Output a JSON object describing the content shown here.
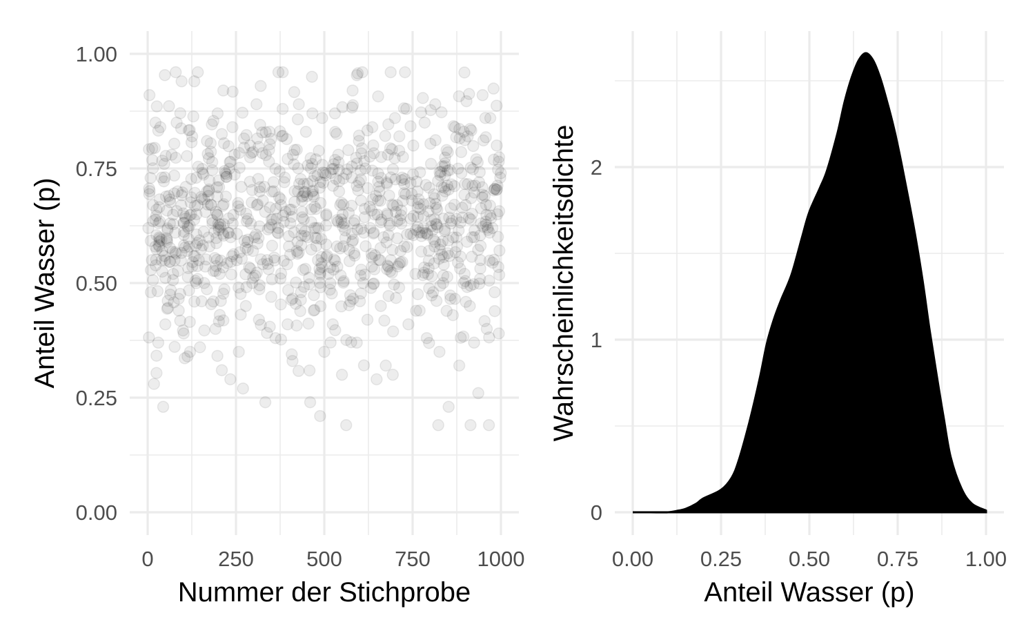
{
  "chart_data": [
    {
      "type": "scatter",
      "xlabel": "Nummer der Stichprobe",
      "ylabel": "Anteil Wasser  (p)",
      "xlim": [
        0,
        1000
      ],
      "ylim": [
        0,
        1
      ],
      "x_ticks": [
        "0",
        "250",
        "500",
        "750",
        "1000"
      ],
      "y_ticks": [
        "0.00",
        "0.25",
        "0.50",
        "0.75",
        "1.00"
      ],
      "grid": true,
      "point_alpha": 0.1,
      "n_points": 1000,
      "summary": {
        "mean": 0.64,
        "sd": 0.13,
        "min": 0.19,
        "max": 0.96
      },
      "points": [
        [
          2,
          0.62
        ],
        [
          5,
          0.91
        ],
        [
          9,
          0.48
        ],
        [
          12,
          0.55
        ],
        [
          18,
          0.28
        ],
        [
          22,
          0.85
        ],
        [
          25,
          0.66
        ],
        [
          30,
          0.37
        ],
        [
          36,
          0.84
        ],
        [
          40,
          0.73
        ],
        [
          44,
          0.23
        ],
        [
          50,
          0.41
        ],
        [
          55,
          0.59
        ],
        [
          60,
          0.69
        ],
        [
          68,
          0.78
        ],
        [
          72,
          0.52
        ],
        [
          78,
          0.61
        ],
        [
          82,
          0.85
        ],
        [
          88,
          0.44
        ],
        [
          96,
          0.94
        ],
        [
          102,
          0.39
        ],
        [
          108,
          0.71
        ],
        [
          112,
          0.57
        ],
        [
          120,
          0.35
        ],
        [
          126,
          0.82
        ],
        [
          132,
          0.94
        ],
        [
          138,
          0.65
        ],
        [
          142,
          0.96
        ],
        [
          148,
          0.36
        ],
        [
          155,
          0.74
        ],
        [
          160,
          0.5
        ],
        [
          168,
          0.81
        ],
        [
          175,
          0.58
        ],
        [
          180,
          0.67
        ],
        [
          186,
          0.46
        ],
        [
          192,
          0.4
        ],
        [
          198,
          0.87
        ],
        [
          204,
          0.52
        ],
        [
          210,
          0.31
        ],
        [
          214,
          0.92
        ],
        [
          220,
          0.74
        ],
        [
          228,
          0.61
        ],
        [
          234,
          0.29
        ],
        [
          240,
          0.84
        ],
        [
          246,
          0.78
        ],
        [
          252,
          0.55
        ],
        [
          258,
          0.35
        ],
        [
          265,
          0.71
        ],
        [
          270,
          0.27
        ],
        [
          278,
          0.45
        ],
        [
          284,
          0.64
        ],
        [
          290,
          0.8
        ],
        [
          296,
          0.5
        ],
        [
          302,
          0.6
        ],
        [
          308,
          0.89
        ],
        [
          315,
          0.42
        ],
        [
          320,
          0.93
        ],
        [
          326,
          0.68
        ],
        [
          333,
          0.24
        ],
        [
          338,
          0.55
        ],
        [
          345,
          0.83
        ],
        [
          350,
          0.47
        ],
        [
          356,
          0.72
        ],
        [
          362,
          0.38
        ],
        [
          370,
          0.62
        ],
        [
          376,
          0.51
        ],
        [
          382,
          0.88
        ],
        [
          388,
          0.73
        ],
        [
          396,
          0.41
        ],
        [
          402,
          0.66
        ],
        [
          410,
          0.33
        ],
        [
          416,
          0.79
        ],
        [
          422,
          0.57
        ],
        [
          428,
          0.89
        ],
        [
          434,
          0.48
        ],
        [
          440,
          0.69
        ],
        [
          448,
          0.83
        ],
        [
          454,
          0.6
        ],
        [
          460,
          0.24
        ],
        [
          465,
          0.95
        ],
        [
          470,
          0.44
        ],
        [
          476,
          0.77
        ],
        [
          482,
          0.55
        ],
        [
          488,
          0.21
        ],
        [
          494,
          0.86
        ],
        [
          500,
          0.35
        ],
        [
          506,
          0.65
        ],
        [
          512,
          0.52
        ],
        [
          518,
          0.74
        ],
        [
          524,
          0.41
        ],
        [
          530,
          0.87
        ],
        [
          536,
          0.58
        ],
        [
          542,
          0.7
        ],
        [
          550,
          0.3
        ],
        [
          556,
          0.63
        ],
        [
          562,
          0.19
        ],
        [
          568,
          0.79
        ],
        [
          574,
          0.46
        ],
        [
          580,
          0.92
        ],
        [
          586,
          0.56
        ],
        [
          592,
          0.37
        ],
        [
          598,
          0.81
        ],
        [
          604,
          0.68
        ],
        [
          610,
          0.5
        ],
        [
          616,
          0.75
        ],
        [
          622,
          0.42
        ],
        [
          630,
          0.62
        ],
        [
          636,
          0.84
        ],
        [
          642,
          0.53
        ],
        [
          648,
          0.29
        ],
        [
          655,
          0.71
        ],
        [
          660,
          0.45
        ],
        [
          668,
          0.6
        ],
        [
          674,
          0.32
        ],
        [
          680,
          0.78
        ],
        [
          688,
          0.55
        ],
        [
          694,
          0.3
        ],
        [
          700,
          0.86
        ],
        [
          706,
          0.67
        ],
        [
          712,
          0.49
        ],
        [
          720,
          0.73
        ],
        [
          726,
          0.58
        ],
        [
          732,
          0.88
        ],
        [
          738,
          0.41
        ],
        [
          745,
          0.64
        ],
        [
          752,
          0.8
        ],
        [
          758,
          0.52
        ],
        [
          764,
          0.7
        ],
        [
          770,
          0.44
        ],
        [
          776,
          0.61
        ],
        [
          784,
          0.85
        ],
        [
          790,
          0.38
        ],
        [
          796,
          0.57
        ],
        [
          802,
          0.76
        ],
        [
          808,
          0.48
        ],
        [
          814,
          0.89
        ],
        [
          820,
          0.66
        ],
        [
          826,
          0.35
        ],
        [
          832,
          0.71
        ],
        [
          838,
          0.54
        ],
        [
          846,
          0.79
        ],
        [
          852,
          0.23
        ],
        [
          858,
          0.63
        ],
        [
          864,
          0.43
        ],
        [
          870,
          0.84
        ],
        [
          876,
          0.58
        ],
        [
          882,
          0.32
        ],
        [
          888,
          0.74
        ],
        [
          894,
          0.5
        ],
        [
          900,
          0.67
        ],
        [
          906,
          0.82
        ],
        [
          912,
          0.45
        ],
        [
          918,
          0.6
        ],
        [
          924,
          0.37
        ],
        [
          930,
          0.77
        ],
        [
          936,
          0.26
        ],
        [
          942,
          0.55
        ],
        [
          948,
          0.91
        ],
        [
          954,
          0.69
        ],
        [
          960,
          0.4
        ],
        [
          966,
          0.19
        ],
        [
          970,
          0.86
        ],
        [
          976,
          0.62
        ],
        [
          982,
          0.48
        ],
        [
          988,
          0.8
        ],
        [
          994,
          0.39
        ],
        [
          998,
          0.73
        ],
        [
          15,
          0.67
        ],
        [
          33,
          0.58
        ],
        [
          47,
          0.76
        ],
        [
          63,
          0.63
        ],
        [
          85,
          0.7
        ],
        [
          115,
          0.62
        ],
        [
          145,
          0.55
        ],
        [
          172,
          0.69
        ],
        [
          200,
          0.63
        ],
        [
          235,
          0.6
        ],
        [
          262,
          0.66
        ],
        [
          298,
          0.57
        ],
        [
          330,
          0.71
        ],
        [
          365,
          0.64
        ],
        [
          400,
          0.58
        ],
        [
          437,
          0.68
        ],
        [
          472,
          0.62
        ],
        [
          508,
          0.56
        ],
        [
          545,
          0.67
        ],
        [
          578,
          0.73
        ],
        [
          612,
          0.61
        ],
        [
          646,
          0.69
        ],
        [
          684,
          0.63
        ],
        [
          716,
          0.57
        ],
        [
          748,
          0.68
        ],
        [
          780,
          0.62
        ],
        [
          812,
          0.58
        ],
        [
          842,
          0.7
        ],
        [
          874,
          0.64
        ],
        [
          904,
          0.59
        ],
        [
          938,
          0.72
        ],
        [
          968,
          0.61
        ],
        [
          990,
          0.65
        ]
      ]
    },
    {
      "type": "area",
      "xlabel": "Anteil Wasser (p)",
      "ylabel": "Wahrscheinlichkeitsdichte",
      "xlim": [
        0,
        1
      ],
      "ylim": [
        0,
        2.7
      ],
      "x_ticks": [
        "0.00",
        "0.25",
        "0.50",
        "0.75",
        "1.00"
      ],
      "y_ticks": [
        "0",
        "1",
        "2"
      ],
      "grid": true,
      "fill_color": "#000000",
      "x": [
        0.0,
        0.05,
        0.1,
        0.13,
        0.15,
        0.18,
        0.2,
        0.25,
        0.28,
        0.3,
        0.33,
        0.36,
        0.38,
        0.4,
        0.42,
        0.45,
        0.48,
        0.5,
        0.53,
        0.55,
        0.58,
        0.6,
        0.62,
        0.64,
        0.66,
        0.68,
        0.7,
        0.72,
        0.74,
        0.76,
        0.78,
        0.8,
        0.82,
        0.84,
        0.86,
        0.88,
        0.9,
        0.93,
        0.96,
        1.0
      ],
      "y": [
        0.0,
        0.0,
        0.0,
        0.01,
        0.02,
        0.05,
        0.08,
        0.13,
        0.2,
        0.3,
        0.52,
        0.78,
        0.98,
        1.12,
        1.23,
        1.38,
        1.6,
        1.74,
        1.88,
        1.98,
        2.2,
        2.38,
        2.52,
        2.62,
        2.66,
        2.62,
        2.52,
        2.38,
        2.22,
        2.03,
        1.82,
        1.6,
        1.35,
        1.06,
        0.8,
        0.55,
        0.32,
        0.14,
        0.05,
        0.01
      ]
    }
  ]
}
